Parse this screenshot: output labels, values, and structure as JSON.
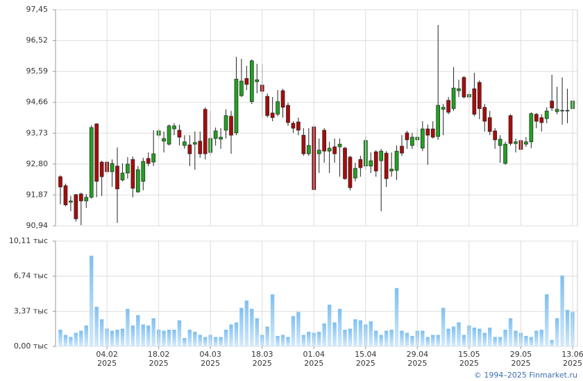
{
  "chart_data": [
    {
      "type": "candlestick",
      "open": [
        92.42,
        92.15,
        91.65,
        91.88,
        91.9,
        91.69,
        91.8,
        94.01,
        92.86,
        92.86,
        92.57,
        92.74,
        92.32,
        92.53,
        92.94,
        91.96,
        92.28,
        92.97,
        92.86,
        93.67,
        93.49,
        93.4,
        93.86,
        93.82,
        93.36,
        93.38,
        93.4,
        93.49,
        94.45,
        93.15,
        93.57,
        93.55,
        93.82,
        94.24,
        93.74,
        94.86,
        95.38,
        94.68,
        95.28,
        95.18,
        94.84,
        94.34,
        94.3,
        95.01,
        94.57,
        94.03,
        94.07,
        93.67,
        93.11,
        93.92,
        93.11,
        93.82,
        93.19,
        93.32,
        93.32,
        93.28,
        93.01,
        92.38,
        92.94,
        92.74,
        92.74,
        93.17,
        92.9,
        93.13,
        92.59,
        92.61,
        93.34,
        93.74,
        93.36,
        93.53,
        93.28,
        93.86,
        93.86,
        93.63,
        94.45,
        94.72,
        94.47,
        95.01,
        95.41,
        94.82,
        95.07,
        95.26,
        94.51,
        94.2,
        93.8,
        93.36,
        92.82,
        94.26,
        93.42,
        93.51,
        93.4,
        93.47,
        94.3,
        94.2,
        94.17,
        94.7,
        94.38,
        94.4,
        94.4,
        94.47
      ],
      "high": [
        92.46,
        92.21,
        91.84,
        91.9,
        91.94,
        91.9,
        93.97,
        94.03,
        92.9,
        92.9,
        92.94,
        93.3,
        92.82,
        93.01,
        93.03,
        92.74,
        92.99,
        93.15,
        93.82,
        93.88,
        93.78,
        93.99,
        94.03,
        93.99,
        93.67,
        93.67,
        93.78,
        93.78,
        94.51,
        94.4,
        93.9,
        93.88,
        94.45,
        94.4,
        96.03,
        95.97,
        95.76,
        95.95,
        95.82,
        95.82,
        94.93,
        94.82,
        95.03,
        95.07,
        94.65,
        94.09,
        94.2,
        93.88,
        93.88,
        93.99,
        93.57,
        93.88,
        93.47,
        93.57,
        93.57,
        93.32,
        93.05,
        92.84,
        93.05,
        93.65,
        93.15,
        93.22,
        93.26,
        93.19,
        93.15,
        93.36,
        93.67,
        93.8,
        93.74,
        93.88,
        94.09,
        93.99,
        94.09,
        96.99,
        94.61,
        94.82,
        95.72,
        95.34,
        95.45,
        95.03,
        95.55,
        95.32,
        94.61,
        94.4,
        93.88,
        93.67,
        93.47,
        94.3,
        93.57,
        93.57,
        93.61,
        94.36,
        94.34,
        94.3,
        94.51,
        95.49,
        95.13,
        95.41,
        95.07,
        94.74
      ],
      "low": [
        91.59,
        91.53,
        91.38,
        91.07,
        90.96,
        91.48,
        91.76,
        91.8,
        91.84,
        92.49,
        92.11,
        91.03,
        92.28,
        92.36,
        91.8,
        91.94,
        92.01,
        92.74,
        92.74,
        93.57,
        93.15,
        93.36,
        93.67,
        93.36,
        93.26,
        92.74,
        92.63,
        92.99,
        92.94,
        93.05,
        93.36,
        93.26,
        93.57,
        93.11,
        93.67,
        94.82,
        95.03,
        94.61,
        94.93,
        94.2,
        94.2,
        94.09,
        94.24,
        94.2,
        93.95,
        93.74,
        93.67,
        93.05,
        93.05,
        92.01,
        92.53,
        92.84,
        92.53,
        92.84,
        92.42,
        92.32,
        92.01,
        92.28,
        92.42,
        92.63,
        92.53,
        92.42,
        91.38,
        92.11,
        92.42,
        92.32,
        93.05,
        93.26,
        93.26,
        93.32,
        93.19,
        92.78,
        93.57,
        93.53,
        93.67,
        94.3,
        94.4,
        94.82,
        94.78,
        94.72,
        94.24,
        94.15,
        93.78,
        93.67,
        93.26,
        92.84,
        92.78,
        93.36,
        93.15,
        93.15,
        93.32,
        93.28,
        93.88,
        93.78,
        94.03,
        94.4,
        94.3,
        93.99,
        94.03,
        94.15
      ],
      "close": [
        92.11,
        91.57,
        91.69,
        91.15,
        91.69,
        91.8,
        93.9,
        92.28,
        92.42,
        92.57,
        92.82,
        92.05,
        92.53,
        92.8,
        92.07,
        92.63,
        92.88,
        92.82,
        93.11,
        93.8,
        93.57,
        93.95,
        93.95,
        93.61,
        93.47,
        93.11,
        93.45,
        93.11,
        93.11,
        93.57,
        93.8,
        93.61,
        94.26,
        93.67,
        95.36,
        95.3,
        95.2,
        95.91,
        95.34,
        94.99,
        94.26,
        94.2,
        94.68,
        94.51,
        94.05,
        93.88,
        93.82,
        93.11,
        93.36,
        92.03,
        93.22,
        93.19,
        93.28,
        93.11,
        93.4,
        92.36,
        92.09,
        92.67,
        92.69,
        93.51,
        92.9,
        92.59,
        93.19,
        92.36,
        92.65,
        93.19,
        93.13,
        93.53,
        93.61,
        93.61,
        93.86,
        93.67,
        93.61,
        94.57,
        94.51,
        94.36,
        95.09,
        95.07,
        94.82,
        94.9,
        94.3,
        94.47,
        94.09,
        93.78,
        93.53,
        93.55,
        93.4,
        93.42,
        93.47,
        93.24,
        93.47,
        94.32,
        94.09,
        94.05,
        94.4,
        94.49,
        94.45,
        94.42,
        94.42,
        94.7
      ],
      "up_color": "#22a022",
      "down_color": "#a80c0c",
      "ylim": [
        90.94,
        97.45
      ],
      "yticks": [
        {
          "value": 90.94,
          "label": "90,94"
        },
        {
          "value": 91.87,
          "label": "91,87"
        },
        {
          "value": 92.8,
          "label": "92,80"
        },
        {
          "value": 93.73,
          "label": "93,73"
        },
        {
          "value": 94.66,
          "label": "94,66"
        },
        {
          "value": 95.59,
          "label": "95,59"
        },
        {
          "value": 96.52,
          "label": "96,52"
        },
        {
          "value": 97.45,
          "label": "97,45"
        }
      ],
      "grid": true
    },
    {
      "type": "bar",
      "categories": [
        null,
        null,
        null,
        null,
        null,
        null,
        null,
        null,
        null,
        "04.02\n2025",
        null,
        null,
        null,
        null,
        null,
        null,
        null,
        null,
        null,
        "18.02\n2025",
        null,
        null,
        null,
        null,
        null,
        null,
        null,
        null,
        null,
        "04.03\n2025",
        null,
        null,
        null,
        null,
        null,
        null,
        null,
        null,
        null,
        "18.03\n2025",
        null,
        null,
        null,
        null,
        null,
        null,
        null,
        null,
        null,
        "01.04\n2025",
        null,
        null,
        null,
        null,
        null,
        null,
        null,
        null,
        null,
        "15.04\n2025",
        null,
        null,
        null,
        null,
        null,
        null,
        null,
        null,
        null,
        "29.04\n2025",
        null,
        null,
        null,
        null,
        null,
        null,
        null,
        null,
        null,
        "15.05\n2025",
        null,
        null,
        null,
        null,
        null,
        null,
        null,
        null,
        null,
        "29.05\n2025",
        null,
        null,
        null,
        null,
        null,
        null,
        null,
        null,
        null,
        "13.06\n2025"
      ],
      "values": [
        1.6,
        1.1,
        0.9,
        1.3,
        1.5,
        2.0,
        8.7,
        3.8,
        2.6,
        1.7,
        1.5,
        1.6,
        1.7,
        3.6,
        2.0,
        3.0,
        2.1,
        2.0,
        2.7,
        1.6,
        1.5,
        1.6,
        1.6,
        2.5,
        0.8,
        1.6,
        1.4,
        1.1,
        0.9,
        1.1,
        0.9,
        0.9,
        1.6,
        2.1,
        2.3,
        3.7,
        4.4,
        3.6,
        2.7,
        1.1,
        1.9,
        5.0,
        1.0,
        1.1,
        0.9,
        2.9,
        3.3,
        1.1,
        1.4,
        1.3,
        1.4,
        2.2,
        4.0,
        2.3,
        3.6,
        1.6,
        1.7,
        2.6,
        2.5,
        2.1,
        2.4,
        1.5,
        1.1,
        1.5,
        1.6,
        5.6,
        1.5,
        1.3,
        1.0,
        1.5,
        1.5,
        0.9,
        1.1,
        1.1,
        3.7,
        1.7,
        1.9,
        2.3,
        1.1,
        2.0,
        1.8,
        1.7,
        1.3,
        1.8,
        0.9,
        0.9,
        1.6,
        2.7,
        1.5,
        1.3,
        1.0,
        0.9,
        1.5,
        1.6,
        5.0,
        0.6,
        2.7,
        6.8,
        3.5,
        3.3
      ],
      "color": "#8ec8f2",
      "ylim": [
        0,
        10.11
      ],
      "yticks": [
        {
          "value": 0,
          "label": "0,00 тыс"
        },
        {
          "value": 3.37,
          "label": "3,37 тыс"
        },
        {
          "value": 6.74,
          "label": "6,74 тыс"
        },
        {
          "value": 10.11,
          "label": "10,11 тыс"
        }
      ],
      "grid": true
    }
  ],
  "footer": "© 1994–2025 Finmarket.ru"
}
